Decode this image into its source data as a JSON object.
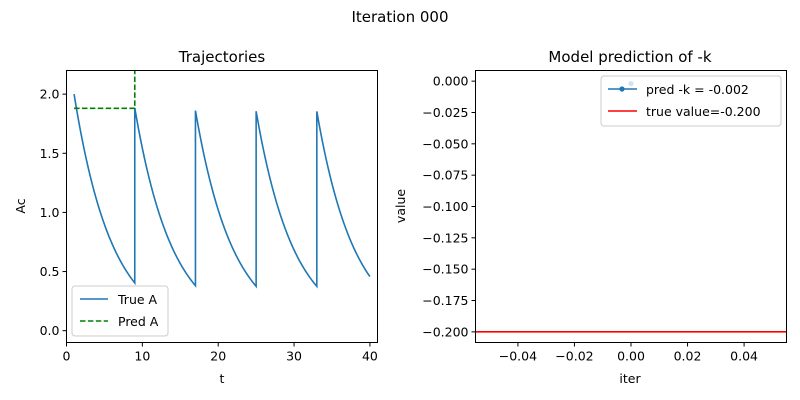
{
  "suptitle": "Iteration 000",
  "chart_data": [
    {
      "type": "line",
      "title": "Trajectories",
      "xlabel": "t",
      "ylabel": "Ac",
      "xlim": [
        0,
        41
      ],
      "ylim": [
        -0.1,
        2.2
      ],
      "xticks": [
        0,
        10,
        20,
        30,
        40
      ],
      "yticks": [
        0.0,
        0.5,
        1.0,
        1.5,
        2.0
      ],
      "xtick_labels": [
        "0",
        "10",
        "20",
        "30",
        "40"
      ],
      "ytick_labels": [
        "0.0",
        "0.5",
        "1.0",
        "1.5",
        "2.0"
      ],
      "legend_position": "lower-left",
      "series": [
        {
          "name": "True A",
          "style": "solid",
          "color": "#1f77b4",
          "model": "exponential decay with periodic dose",
          "decay_rate": 0.2,
          "dose_times": [
            1,
            9,
            17,
            25,
            33
          ],
          "initial_value": 2.0,
          "dose_amount": 1.48,
          "x_end": 40
        },
        {
          "name": "Pred A",
          "style": "dashed",
          "color": "#008000",
          "x": [
            1,
            9,
            9
          ],
          "y": [
            1.88,
            1.88,
            2.25
          ]
        }
      ]
    },
    {
      "type": "line",
      "title": "Model prediction of -k",
      "xlabel": "iter",
      "ylabel": "value",
      "xlim": [
        -0.055,
        0.055
      ],
      "ylim": [
        -0.2085,
        0.0085
      ],
      "xticks": [
        -0.04,
        -0.02,
        0.0,
        0.02,
        0.04
      ],
      "yticks": [
        0.0,
        -0.025,
        -0.05,
        -0.075,
        -0.1,
        -0.125,
        -0.15,
        -0.175,
        -0.2
      ],
      "xtick_labels": [
        "−0.04",
        "−0.02",
        "0.00",
        "0.02",
        "0.04"
      ],
      "ytick_labels": [
        "0.000",
        "−0.025",
        "−0.050",
        "−0.075",
        "−0.100",
        "−0.125",
        "−0.150",
        "−0.175",
        "−0.200"
      ],
      "legend_position": "top-right",
      "series": [
        {
          "name": "pred -k = -0.002",
          "style": "solid-with-markers",
          "color": "#1f77b4",
          "x": [
            0
          ],
          "y": [
            -0.002
          ]
        },
        {
          "name": "true value=-0.200",
          "style": "horizontal-line",
          "color": "#ff0000",
          "y": -0.2
        }
      ]
    }
  ]
}
